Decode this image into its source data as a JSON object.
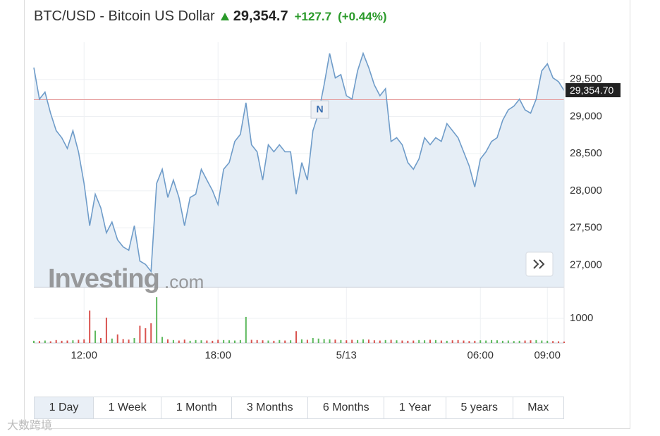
{
  "header": {
    "title": "BTC/USD - Bitcoin US Dollar",
    "price": "29,354.7",
    "change": "+127.7",
    "change_percent": "(+0.44%)"
  },
  "chart_data": {
    "type": "line",
    "categories": [
      null,
      null,
      null,
      null,
      null,
      null,
      null,
      null,
      null,
      "12:00",
      null,
      null,
      null,
      null,
      null,
      null,
      null,
      null,
      null,
      null,
      null,
      null,
      null,
      null,
      null,
      null,
      null,
      null,
      null,
      null,
      null,
      null,
      null,
      "18:00",
      null,
      null,
      null,
      null,
      null,
      null,
      null,
      null,
      null,
      null,
      null,
      null,
      null,
      null,
      null,
      null,
      null,
      null,
      null,
      null,
      null,
      null,
      "5/13",
      null,
      null,
      null,
      null,
      null,
      null,
      null,
      null,
      null,
      null,
      null,
      null,
      null,
      null,
      null,
      null,
      null,
      null,
      null,
      null,
      null,
      null,
      null,
      "06:00",
      null,
      null,
      null,
      null,
      null,
      null,
      null,
      null,
      null,
      null,
      null,
      "09:00",
      null,
      null,
      null
    ],
    "values": [
      29660,
      29235,
      29330,
      29045,
      28810,
      28715,
      28570,
      28810,
      28525,
      28100,
      27530,
      27955,
      27770,
      27435,
      27580,
      27340,
      27245,
      27200,
      27530,
      27055,
      27010,
      26915,
      28100,
      28290,
      27910,
      28145,
      27910,
      27530,
      27910,
      27955,
      28290,
      28145,
      28005,
      27815,
      28290,
      28380,
      28665,
      28760,
      29185,
      28620,
      28525,
      28145,
      28620,
      28525,
      28620,
      28525,
      28525,
      27955,
      28380,
      28145,
      28810,
      29045,
      29425,
      29850,
      29520,
      29565,
      29280,
      29235,
      29615,
      29850,
      29660,
      29425,
      29280,
      29375,
      28665,
      28715,
      28620,
      28380,
      28290,
      28430,
      28715,
      28620,
      28715,
      28665,
      28905,
      28810,
      28715,
      28525,
      28335,
      28050,
      28430,
      28525,
      28665,
      28715,
      28950,
      29090,
      29140,
      29235,
      29090,
      29045,
      29235,
      29615,
      29710,
      29520,
      29470,
      29350
    ],
    "color": "#6f9cc9",
    "area_color": "#e6eef6",
    "ylim": [
      26700,
      30000
    ],
    "yticks": [
      {
        "value": 27000,
        "label": "27,000"
      },
      {
        "value": 27500,
        "label": "27,500"
      },
      {
        "value": 28000,
        "label": "28,000"
      },
      {
        "value": 28500,
        "label": "28,500"
      },
      {
        "value": 29000,
        "label": "29,000"
      },
      {
        "value": 29500,
        "label": "29,500"
      }
    ],
    "last_price": {
      "value": 29354.7,
      "label": "29,354.70"
    },
    "reference_line": 29227,
    "marker": "N",
    "volume": {
      "values": [
        90,
        80,
        100,
        70,
        120,
        90,
        100,
        110,
        130,
        150,
        1320,
        500,
        200,
        1030,
        180,
        350,
        160,
        140,
        200,
        700,
        600,
        800,
        1860,
        250,
        150,
        120,
        100,
        140,
        90,
        120,
        110,
        100,
        90,
        130,
        120,
        110,
        100,
        120,
        1060,
        130,
        120,
        110,
        100,
        90,
        120,
        100,
        110,
        480,
        150,
        130,
        200,
        180,
        160,
        150,
        140,
        120,
        110,
        130,
        120,
        150,
        140,
        110,
        100,
        120,
        130,
        110,
        100,
        90,
        100,
        120,
        110,
        130,
        120,
        100,
        90,
        110,
        120,
        100,
        80,
        90,
        110,
        100,
        120,
        110,
        90,
        100,
        80,
        90,
        100,
        110,
        120,
        100,
        90,
        80,
        70,
        60
      ],
      "ylim": [
        0,
        2200
      ],
      "yticks": [
        1000
      ],
      "up_color": "#5cb85c",
      "down_color": "#d9534f"
    },
    "grid": true
  },
  "watermark": {
    "brand": "Investing",
    "suffix": ".com",
    "corner": "大数跨境"
  },
  "periods": {
    "items": [
      "1 Day",
      "1 Week",
      "1 Month",
      "3 Months",
      "6 Months",
      "1 Year",
      "5 years",
      "Max"
    ],
    "active": 0
  }
}
